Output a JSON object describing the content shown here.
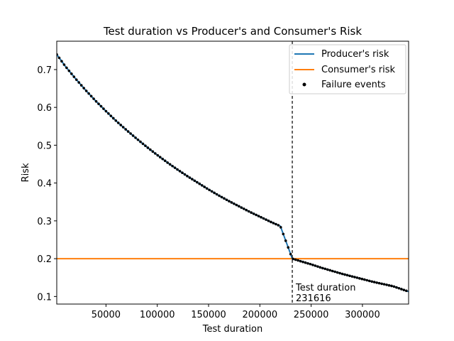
{
  "chart_data": {
    "type": "line",
    "title": "Test duration vs Producer's and Consumer's Risk",
    "xlabel": "Test duration",
    "ylabel": "Risk",
    "xlim": [
      2000,
      345000
    ],
    "ylim": [
      0.08,
      0.775
    ],
    "x_ticks": [
      50000,
      100000,
      150000,
      200000,
      250000,
      300000
    ],
    "x_tick_labels": [
      "50000",
      "100000",
      "150000",
      "200000",
      "250000",
      "300000"
    ],
    "y_ticks": [
      0.1,
      0.2,
      0.3,
      0.4,
      0.5,
      0.6,
      0.7
    ],
    "y_tick_labels": [
      "0.1",
      "0.2",
      "0.3",
      "0.4",
      "0.5",
      "0.6",
      "0.7"
    ],
    "grid": false,
    "legend_position": "top-right",
    "series": [
      {
        "name": "Producer's risk",
        "kind": "line",
        "color": "#1f77b4",
        "x": [
          2000,
          10000,
          20000,
          30000,
          40000,
          50000,
          60000,
          70000,
          80000,
          90000,
          100000,
          110000,
          120000,
          130000,
          140000,
          150000,
          160000,
          170000,
          180000,
          190000,
          200000,
          210000,
          220000,
          231616,
          240000,
          250000,
          260000,
          270000,
          280000,
          290000,
          300000,
          310000,
          320000,
          330000,
          345000
        ],
        "y": [
          0.74,
          0.71,
          0.677,
          0.646,
          0.617,
          0.59,
          0.564,
          0.54,
          0.517,
          0.495,
          0.474,
          0.454,
          0.435,
          0.417,
          0.4,
          0.383,
          0.367,
          0.352,
          0.338,
          0.324,
          0.311,
          0.298,
          0.286,
          0.2,
          0.193,
          0.185,
          0.176,
          0.168,
          0.16,
          0.153,
          0.146,
          0.139,
          0.133,
          0.127,
          0.113
        ]
      },
      {
        "name": "Consumer's risk",
        "kind": "hline",
        "color": "#ff7f0e",
        "y": 0.2
      },
      {
        "name": "Failure events",
        "kind": "scatter",
        "color": "#000000"
      }
    ],
    "vline": {
      "x": 231616,
      "style": "dashed",
      "color": "#000000"
    },
    "annotation": {
      "line1": "Test duration",
      "line2": "231616",
      "x": 231616,
      "y": 0.09
    }
  }
}
